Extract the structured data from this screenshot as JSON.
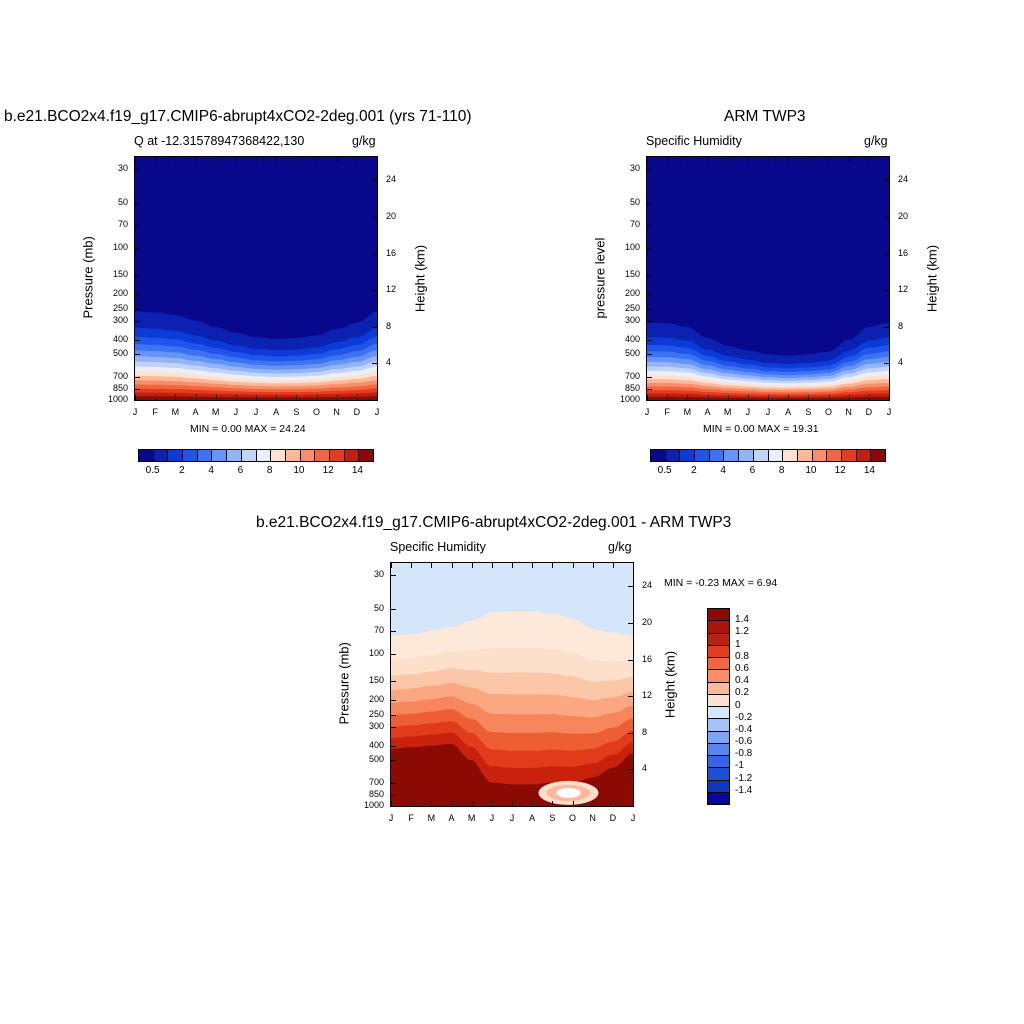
{
  "panels": [
    {
      "title": "b.e21.BCO2x4.f19_g17.CMIP6-abrupt4xCO2-2deg.001 (yrs 71-110)",
      "subtitle_left": "Q at -12.31578947368422,130",
      "subtitle_right": "g/kg",
      "ylabel_left": "Pressure (mb)",
      "ylabel_right": "Height (km)",
      "minmax": "MIN =   0.00 MAX =  24.24"
    },
    {
      "title": "ARM TWP3",
      "subtitle_left": "Specific Humidity",
      "subtitle_right": "g/kg",
      "ylabel_left": "pressure level",
      "ylabel_right": "Height (km)",
      "minmax": "MIN =   0.00 MAX =  19.31"
    },
    {
      "title": "b.e21.BCO2x4.f19_g17.CMIP6-abrupt4xCO2-2deg.001 - ARM TWP3",
      "subtitle_left": "Specific Humidity",
      "subtitle_right": "g/kg",
      "ylabel_left": "Pressure (mb)",
      "ylabel_right": "Height (km)",
      "minmax": "MIN =  -0.23 MAX =   6.94"
    }
  ],
  "chart_data": [
    {
      "type": "heatmap",
      "title": "b.e21.BCO2x4.f19_g17.CMIP6-abrupt4xCO2-2deg.001 (yrs 71-110)",
      "subtitle": "Q at -12.31578947368422,130",
      "units": "g/kg",
      "xlabel": "",
      "x_ticks": [
        "J",
        "F",
        "M",
        "A",
        "M",
        "J",
        "J",
        "A",
        "S",
        "O",
        "N",
        "D",
        "J"
      ],
      "ylabel": "Pressure (mb)",
      "y_ticks": [
        "30",
        "50",
        "70",
        "100",
        "150",
        "200",
        "250",
        "300",
        "400",
        "500",
        "700",
        "850",
        "1000"
      ],
      "ylim_mb": [
        1000,
        25
      ],
      "y2label": "Height (km)",
      "y2_ticks": [
        "24",
        "20",
        "16",
        "12",
        "8",
        "4"
      ],
      "colorbar_labels": [
        "0.5",
        "2",
        "4",
        "6",
        "8",
        "10",
        "12",
        "14"
      ],
      "colormap_levels": [
        0.5,
        1,
        2,
        3,
        4,
        5,
        6,
        7,
        8,
        9,
        10,
        11,
        12,
        13,
        14
      ],
      "min": 0.0,
      "max": 24.24,
      "moisture_top_mb": [
        260,
        265,
        275,
        300,
        330,
        360,
        385,
        395,
        390,
        375,
        340,
        310,
        260
      ]
    },
    {
      "type": "heatmap",
      "title": "ARM TWP3",
      "subtitle": "Specific Humidity",
      "units": "g/kg",
      "xlabel": "",
      "x_ticks": [
        "J",
        "F",
        "M",
        "A",
        "M",
        "J",
        "J",
        "A",
        "S",
        "O",
        "N",
        "D",
        "J"
      ],
      "ylabel": "pressure level",
      "y_ticks": [
        "30",
        "50",
        "70",
        "100",
        "150",
        "200",
        "250",
        "300",
        "400",
        "500",
        "700",
        "850",
        "1000"
      ],
      "ylim_mb": [
        1000,
        25
      ],
      "y2label": "Height (km)",
      "y2_ticks": [
        "24",
        "20",
        "16",
        "12",
        "8",
        "4"
      ],
      "colorbar_labels": [
        "0.5",
        "2",
        "4",
        "6",
        "8",
        "10",
        "12",
        "14"
      ],
      "colormap_levels": [
        0.5,
        1,
        2,
        3,
        4,
        5,
        6,
        7,
        8,
        9,
        10,
        11,
        12,
        13,
        14
      ],
      "min": 0.0,
      "max": 19.31,
      "moisture_top_mb": [
        310,
        312,
        330,
        390,
        440,
        470,
        500,
        510,
        500,
        480,
        400,
        330,
        310
      ]
    },
    {
      "type": "heatmap",
      "title": "b.e21.BCO2x4.f19_g17.CMIP6-abrupt4xCO2-2deg.001 - ARM TWP3",
      "subtitle": "Specific Humidity",
      "units": "g/kg",
      "xlabel": "",
      "x_ticks": [
        "J",
        "F",
        "M",
        "A",
        "M",
        "J",
        "J",
        "A",
        "S",
        "O",
        "N",
        "D",
        "J"
      ],
      "ylabel": "Pressure (mb)",
      "y_ticks": [
        "30",
        "50",
        "70",
        "100",
        "150",
        "200",
        "250",
        "300",
        "400",
        "500",
        "700",
        "850",
        "1000"
      ],
      "ylim_mb": [
        1000,
        25
      ],
      "y2label": "Height (km)",
      "y2_ticks": [
        "24",
        "20",
        "16",
        "12",
        "8",
        "4"
      ],
      "colorbar_labels": [
        "1.4",
        "1.2",
        "1",
        "0.8",
        "0.6",
        "0.4",
        "0.2",
        "0",
        "-0.2",
        "-0.4",
        "-0.6",
        "-0.8",
        "-1",
        "-1.2",
        "-1.4"
      ],
      "min": -0.23,
      "max": 6.94,
      "diff_boundary_mb": [
        75,
        74,
        70,
        66,
        60,
        53,
        52,
        52,
        54,
        58,
        68,
        72,
        75
      ],
      "strong_top_mb": [
        420,
        410,
        400,
        390,
        500,
        700,
        720,
        720,
        700,
        700,
        650,
        560,
        450
      ]
    }
  ],
  "colors": {
    "seq_ramp": [
      "#08088c",
      "#0a21b2",
      "#0c3ad6",
      "#1f55ea",
      "#3b73f2",
      "#6494f5",
      "#93b4f7",
      "#c2d3f7",
      "#eaeffa",
      "#fde3cf",
      "#fcb89a",
      "#f98e68",
      "#f26640",
      "#e33d1f",
      "#c0200c",
      "#8c0a04"
    ],
    "div_ramp": [
      "#8c0a04",
      "#a8150a",
      "#c0200c",
      "#e33d1f",
      "#f26640",
      "#f98e68",
      "#fcb89a",
      "#fde3cf",
      "#d7e7fb",
      "#a6c3f7",
      "#7ea4f5",
      "#5885f0",
      "#3366e6",
      "#1f4fd6",
      "#0c37c0",
      "#07079a"
    ]
  }
}
